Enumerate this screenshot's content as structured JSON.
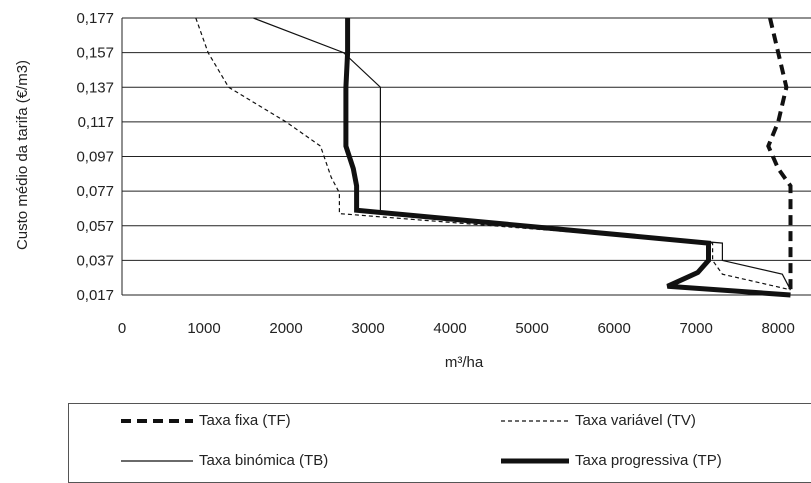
{
  "chart_data": {
    "type": "line",
    "xlabel": "m³/ha",
    "ylabel": "Custo médio da tarifa (€/m3)",
    "xlim": [
      0,
      8400
    ],
    "ylim": [
      0.017,
      0.177
    ],
    "x_ticks": [
      "0",
      "1000",
      "2000",
      "3000",
      "4000",
      "5000",
      "6000",
      "7000",
      "8000"
    ],
    "y_ticks": [
      "0,177",
      "0,157",
      "0,137",
      "0,117",
      "0,097",
      "0,077",
      "0,057",
      "0,037",
      "0,017"
    ],
    "grid": "horizontal",
    "legend_position": "bottom",
    "series": [
      {
        "name": "Taxa fixa (TF)",
        "style": "thick-dashed",
        "points": [
          [
            7900,
            0.177
          ],
          [
            8000,
            0.157
          ],
          [
            8100,
            0.137
          ],
          [
            8000,
            0.117
          ],
          [
            7880,
            0.103
          ],
          [
            8000,
            0.09
          ],
          [
            8150,
            0.08
          ],
          [
            8150,
            0.057
          ],
          [
            8150,
            0.037
          ],
          [
            8150,
            0.017
          ]
        ]
      },
      {
        "name": "Taxa variável (TV)",
        "style": "thin-dashed",
        "points": [
          [
            900,
            0.177
          ],
          [
            1050,
            0.157
          ],
          [
            1300,
            0.137
          ],
          [
            2000,
            0.117
          ],
          [
            2420,
            0.103
          ],
          [
            2550,
            0.085
          ],
          [
            2650,
            0.076
          ],
          [
            2650,
            0.064
          ],
          [
            7200,
            0.047
          ],
          [
            7200,
            0.037
          ],
          [
            7320,
            0.029
          ],
          [
            8150,
            0.02
          ]
        ]
      },
      {
        "name": "Taxa binómica (TB)",
        "style": "thin-solid",
        "points": [
          [
            1600,
            0.177
          ],
          [
            2700,
            0.157
          ],
          [
            3150,
            0.137
          ],
          [
            3150,
            0.064
          ],
          [
            7320,
            0.047
          ],
          [
            7320,
            0.037
          ],
          [
            8050,
            0.029
          ],
          [
            8150,
            0.02
          ]
        ]
      },
      {
        "name": "Taxa progressiva (TP)",
        "style": "thick-solid",
        "points": [
          [
            2750,
            0.177
          ],
          [
            2750,
            0.157
          ],
          [
            2730,
            0.137
          ],
          [
            2730,
            0.117
          ],
          [
            2730,
            0.103
          ],
          [
            2820,
            0.09
          ],
          [
            2860,
            0.08
          ],
          [
            2860,
            0.066
          ],
          [
            7150,
            0.047
          ],
          [
            7150,
            0.037
          ],
          [
            7020,
            0.03
          ],
          [
            6650,
            0.022
          ],
          [
            8150,
            0.017
          ]
        ]
      }
    ]
  }
}
